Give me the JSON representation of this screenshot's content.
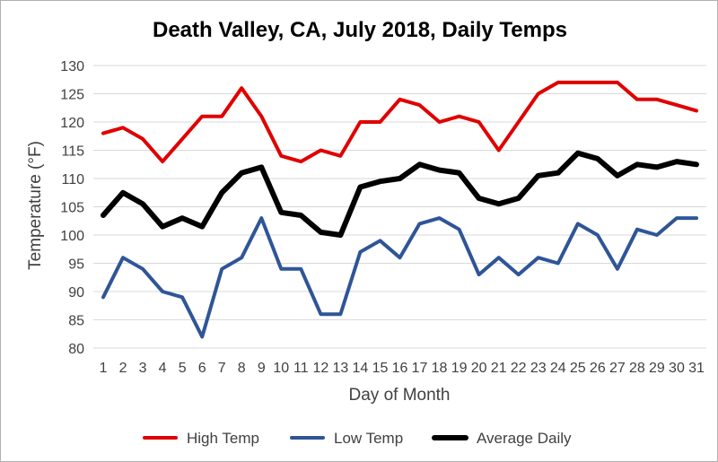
{
  "chart_data": {
    "type": "line",
    "title": "Death Valley, CA, July 2018, Daily Temps",
    "xlabel": "Day of Month",
    "ylabel": "Temperature (°F)",
    "ylim": [
      80,
      130
    ],
    "yticks": [
      80,
      85,
      90,
      95,
      100,
      105,
      110,
      115,
      120,
      125,
      130
    ],
    "grid": true,
    "legend_position": "bottom",
    "categories": [
      "1",
      "2",
      "3",
      "4",
      "5",
      "6",
      "7",
      "8",
      "9",
      "10",
      "11",
      "12",
      "13",
      "14",
      "15",
      "16",
      "17",
      "18",
      "19",
      "20",
      "21",
      "22",
      "23",
      "24",
      "25",
      "26",
      "27",
      "28",
      "29",
      "30",
      "31"
    ],
    "series": [
      {
        "name": "High Temp",
        "color": "#e00000",
        "values": [
          118,
          119,
          117,
          113,
          117,
          121,
          121,
          126,
          121,
          114,
          113,
          115,
          114,
          120,
          120,
          124,
          123,
          120,
          121,
          120,
          115,
          120,
          125,
          127,
          127,
          127,
          127,
          124,
          124,
          123,
          122
        ]
      },
      {
        "name": "Low Temp",
        "color": "#2f5597",
        "values": [
          89,
          96,
          94,
          90,
          89,
          82,
          94,
          96,
          103,
          94,
          94,
          86,
          86,
          97,
          99,
          96,
          102,
          103,
          101,
          93,
          96,
          93,
          96,
          95,
          102,
          100,
          94,
          101,
          100,
          103,
          103
        ]
      },
      {
        "name": "Average Daily",
        "color": "#000000",
        "values": [
          103.5,
          107.5,
          105.5,
          101.5,
          103,
          101.5,
          107.5,
          111,
          112,
          104,
          103.5,
          100.5,
          100,
          108.5,
          109.5,
          110,
          112.5,
          111.5,
          111,
          106.5,
          105.5,
          106.5,
          110.5,
          111,
          114.5,
          113.5,
          110.5,
          112.5,
          112,
          113,
          112.5
        ]
      }
    ]
  }
}
